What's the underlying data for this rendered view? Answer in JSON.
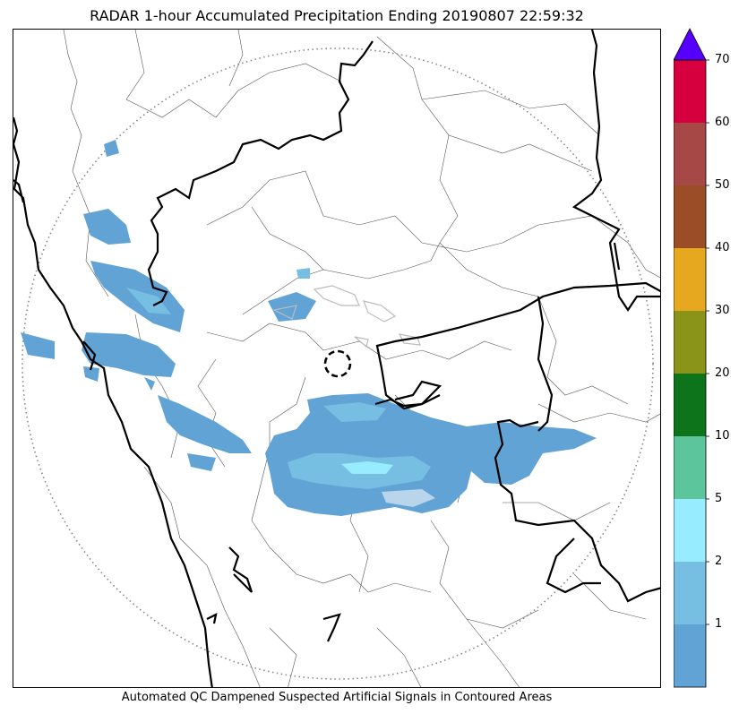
{
  "title": "RADAR 1-hour Accumulated Precipitation Ending 20190807 22:59:32",
  "footer_note": "Automated QC Dampened Suspected Artificial Signals in Contoured Areas",
  "colorbar": {
    "extend": "max",
    "extend_color": "#5500ff",
    "levels": [
      {
        "label": "1",
        "color": "#62a3d6"
      },
      {
        "label": "2",
        "color": "#76bfe3"
      },
      {
        "label": "5",
        "color": "#97ecff"
      },
      {
        "label": "10",
        "color": "#5cc59c"
      },
      {
        "label": "20",
        "color": "#0d741b"
      },
      {
        "label": "30",
        "color": "#899418"
      },
      {
        "label": "40",
        "color": "#e6a81e"
      },
      {
        "label": "50",
        "color": "#9b4d27"
      },
      {
        "label": "60",
        "color": "#a64845"
      },
      {
        "label": "70",
        "color": "#d6003f"
      }
    ]
  },
  "map": {
    "range_ring": "dotted",
    "radar_site_marker": "dashed-circle",
    "coastline_color": "#000000",
    "district_boundary_color": "#555555"
  }
}
